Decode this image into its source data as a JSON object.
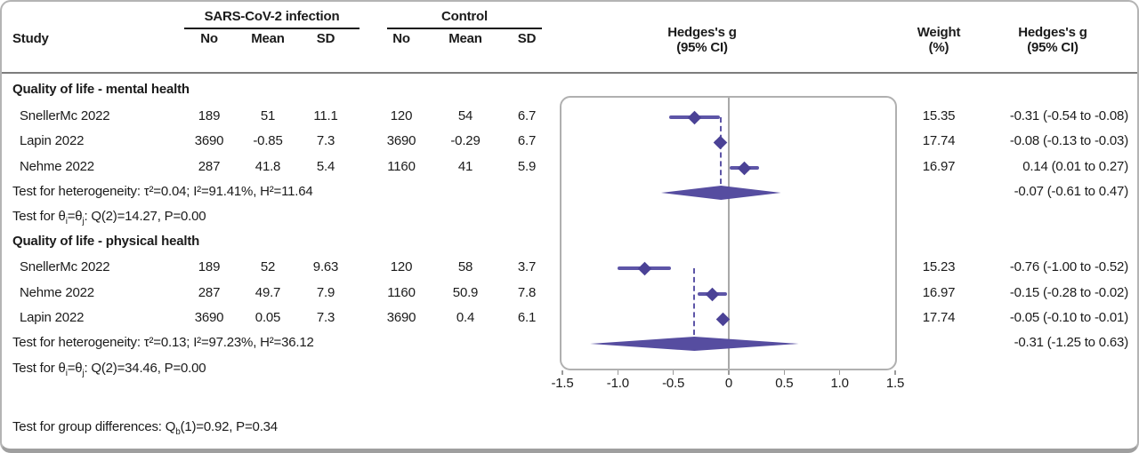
{
  "header": {
    "study": "Study",
    "group1": "SARS-CoV-2 infection",
    "group2": "Control",
    "cols": [
      "No",
      "Mean",
      "SD"
    ],
    "plot_effect_l1": "Hedges's g",
    "plot_effect_l2": "(95% CI)",
    "weight_l1": "Weight",
    "weight_l2": "(%)",
    "effect_l1": "Hedges's g",
    "effect_l2": "(95% CI)"
  },
  "sections": [
    {
      "title": "Quality of life - mental health",
      "rows": [
        {
          "study": "SnellerMc 2022",
          "n1": "189",
          "mean1": "51",
          "sd1": "11.1",
          "n2": "120",
          "mean2": "54",
          "sd2": "6.7",
          "weight": "15.35",
          "ci_text": "-0.31 (-0.54 to -0.08)"
        },
        {
          "study": "Lapin 2022",
          "n1": "3690",
          "mean1": "-0.85",
          "sd1": "7.3",
          "n2": "3690",
          "mean2": "-0.29",
          "sd2": "6.7",
          "weight": "17.74",
          "ci_text": "-0.08 (-0.13 to -0.03)"
        },
        {
          "study": "Nehme 2022",
          "n1": "287",
          "mean1": "41.8",
          "sd1": "5.4",
          "n2": "1160",
          "mean2": "41",
          "sd2": "5.9",
          "weight": "16.97",
          "ci_text": "0.14 (0.01 to 0.27)"
        }
      ],
      "heterogeneity": "Test for heterogeneity: τ²=0.04; I²=91.41%, H²=11.64",
      "theta": {
        "p1": "Test for θ",
        "s1": "i",
        "p2": "=θ",
        "s2": "j",
        "p3": ": Q(2)=14.27, P=0.00"
      },
      "summary": {
        "ci_text": "-0.07 (-0.61 to 0.47)"
      }
    },
    {
      "title": "Quality of life - physical health",
      "rows": [
        {
          "study": "SnellerMc 2022",
          "n1": "189",
          "mean1": "52",
          "sd1": "9.63",
          "n2": "120",
          "mean2": "58",
          "sd2": "3.7",
          "weight": "15.23",
          "ci_text": "-0.76 (-1.00 to -0.52)"
        },
        {
          "study": "Nehme 2022",
          "n1": "287",
          "mean1": "49.7",
          "sd1": "7.9",
          "n2": "1160",
          "mean2": "50.9",
          "sd2": "7.8",
          "weight": "16.97",
          "ci_text": "-0.15 (-0.28 to -0.02)"
        },
        {
          "study": "Lapin 2022",
          "n1": "3690",
          "mean1": "0.05",
          "sd1": "7.3",
          "n2": "3690",
          "mean2": "0.4",
          "sd2": "6.1",
          "weight": "17.74",
          "ci_text": "-0.05 (-0.10 to -0.01)"
        }
      ],
      "heterogeneity": "Test for heterogeneity: τ²=0.13; I²=97.23%, H²=36.12",
      "theta": {
        "p1": "Test for θ",
        "s1": "i",
        "p2": "=θ",
        "s2": "j",
        "p3": ": Q(2)=34.46, P=0.00"
      },
      "summary": {
        "ci_text": "-0.31 (-1.25 to 0.63)"
      }
    }
  ],
  "footer": {
    "p1": "Test for group differences: Q",
    "s1": "b",
    "p2": "(1)=0.92, P=0.34"
  },
  "chart_data": {
    "type": "scatter",
    "subtype": "forest-plot",
    "title": "Hedges's g (95% CI)",
    "xlim": [
      -1.5,
      1.5
    ],
    "xticks": [
      -1.5,
      -1.0,
      -0.5,
      0,
      0.5,
      1.0,
      1.5
    ],
    "xtick_labels": [
      "-1.5",
      "-1.0",
      "-0.5",
      "0",
      "0.5",
      "1.0",
      "1.5"
    ],
    "zero_line": 0,
    "grid": false,
    "legend": "none",
    "groups": [
      {
        "name": "Quality of life - mental health",
        "studies": [
          {
            "label": "SnellerMc 2022",
            "g": -0.31,
            "lo": -0.54,
            "hi": -0.08,
            "weight": 15.35
          },
          {
            "label": "Lapin 2022",
            "g": -0.08,
            "lo": -0.13,
            "hi": -0.03,
            "weight": 17.74
          },
          {
            "label": "Nehme 2022",
            "g": 0.14,
            "lo": 0.01,
            "hi": 0.27,
            "weight": 16.97
          }
        ],
        "summary": {
          "g": -0.07,
          "lo": -0.61,
          "hi": 0.47
        }
      },
      {
        "name": "Quality of life - physical health",
        "studies": [
          {
            "label": "SnellerMc 2022",
            "g": -0.76,
            "lo": -1.0,
            "hi": -0.52,
            "weight": 15.23
          },
          {
            "label": "Nehme 2022",
            "g": -0.15,
            "lo": -0.28,
            "hi": -0.02,
            "weight": 16.97
          },
          {
            "label": "Lapin 2022",
            "g": -0.05,
            "lo": -0.1,
            "hi": -0.01,
            "weight": 17.74
          }
        ],
        "summary": {
          "g": -0.31,
          "lo": -1.25,
          "hi": 0.63
        }
      }
    ],
    "colors": {
      "ci_line": "#5d55a7",
      "diamond": "#4b4296",
      "summary_diamond": "#564da0",
      "zero_line": "#a8a8a8",
      "axis": "#9a9a9a"
    }
  }
}
